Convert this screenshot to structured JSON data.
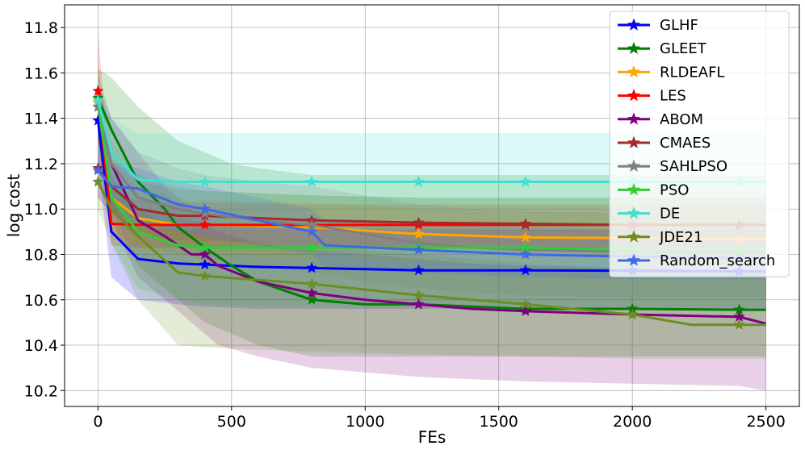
{
  "chart_data": {
    "type": "line",
    "xlabel": "FEs",
    "ylabel": "log cost",
    "xlim": [
      -125,
      2625
    ],
    "ylim": [
      10.13,
      11.9
    ],
    "xticks": [
      0,
      500,
      1000,
      1500,
      2000,
      2500
    ],
    "yticks": [
      10.2,
      10.4,
      10.6,
      10.8,
      11.0,
      11.2,
      11.4,
      11.6,
      11.8
    ],
    "xtick_labels": [
      "0",
      "500",
      "1000",
      "1500",
      "2000",
      "2500"
    ],
    "ytick_labels": [
      "10.2",
      "10.4",
      "10.6",
      "10.8",
      "11.0",
      "11.2",
      "11.4",
      "11.6",
      "11.8"
    ],
    "grid": true,
    "legend_position": "top-right",
    "series": [
      {
        "name": "GLHF",
        "color": "#0000ff",
        "x": [
          0,
          50,
          150,
          300,
          400,
          600,
          800,
          1000,
          1200,
          1600,
          2000,
          2400,
          2500
        ],
        "y": [
          11.39,
          10.9,
          10.78,
          10.76,
          10.755,
          10.745,
          10.74,
          10.735,
          10.73,
          10.73,
          10.728,
          10.725,
          10.725
        ],
        "upper": [
          11.5,
          11.15,
          11.0,
          10.96,
          10.94,
          10.93,
          10.92,
          10.91,
          10.91,
          10.91,
          10.91,
          10.91,
          10.91
        ],
        "lower": [
          11.2,
          10.7,
          10.6,
          10.58,
          10.57,
          10.56,
          10.56,
          10.56,
          10.56,
          10.56,
          10.56,
          10.56,
          10.56
        ]
      },
      {
        "name": "GLEET",
        "color": "#008000",
        "x": [
          0,
          50,
          150,
          250,
          300,
          400,
          500,
          600,
          800,
          1000,
          1200,
          1600,
          2000,
          2400,
          2500
        ],
        "y": [
          11.49,
          11.35,
          11.12,
          11.0,
          10.92,
          10.83,
          10.75,
          10.68,
          10.6,
          10.58,
          10.58,
          10.56,
          10.56,
          10.556,
          10.556
        ],
        "upper": [
          11.62,
          11.58,
          11.45,
          11.35,
          11.3,
          11.25,
          11.2,
          11.18,
          11.15,
          11.15,
          11.15,
          11.15,
          11.15,
          11.15,
          11.15
        ],
        "lower": [
          11.3,
          11.0,
          10.75,
          10.65,
          10.6,
          10.5,
          10.45,
          10.4,
          10.35,
          10.35,
          10.35,
          10.35,
          10.35,
          10.35,
          10.35
        ]
      },
      {
        "name": "RLDEAFL",
        "color": "#ffa500",
        "x": [
          0,
          50,
          150,
          300,
          400,
          800,
          1200,
          1600,
          2000,
          2400,
          2500
        ],
        "y": [
          11.47,
          11.05,
          10.96,
          10.93,
          10.93,
          10.92,
          10.89,
          10.875,
          10.872,
          10.868,
          10.868
        ],
        "upper": [
          11.55,
          11.2,
          11.1,
          11.05,
          11.04,
          11.03,
          11.0,
          10.99,
          10.99,
          10.99,
          10.99
        ],
        "lower": [
          11.3,
          10.9,
          10.82,
          10.8,
          10.8,
          10.79,
          10.77,
          10.76,
          10.76,
          10.76,
          10.76
        ]
      },
      {
        "name": "LES",
        "color": "#ff0000",
        "x": [
          0,
          50,
          150,
          300,
          400,
          800,
          1200,
          1600,
          2000,
          2400,
          2500
        ],
        "y": [
          11.52,
          10.935,
          10.93,
          10.93,
          10.93,
          10.93,
          10.93,
          10.93,
          10.93,
          10.93,
          10.93
        ],
        "upper": [
          11.78,
          11.05,
          11.04,
          11.03,
          11.03,
          11.02,
          11.02,
          11.02,
          11.02,
          11.02,
          11.02
        ],
        "lower": [
          11.3,
          10.84,
          10.83,
          10.83,
          10.83,
          10.83,
          10.83,
          10.83,
          10.83,
          10.83,
          10.83
        ]
      },
      {
        "name": "ABOM",
        "color": "#800080",
        "x": [
          0,
          50,
          150,
          250,
          350,
          400,
          450,
          600,
          800,
          1000,
          1200,
          1400,
          1600,
          2000,
          2400,
          2500
        ],
        "y": [
          11.45,
          11.2,
          10.95,
          10.88,
          10.8,
          10.8,
          10.75,
          10.68,
          10.63,
          10.6,
          10.58,
          10.56,
          10.55,
          10.535,
          10.525,
          10.495
        ],
        "upper": [
          11.55,
          11.4,
          11.25,
          11.1,
          11.0,
          10.95,
          10.9,
          10.85,
          10.82,
          10.8,
          10.78,
          10.76,
          10.75,
          10.74,
          10.73,
          10.72
        ],
        "lower": [
          11.3,
          10.95,
          10.7,
          10.6,
          10.5,
          10.45,
          10.4,
          10.35,
          10.3,
          10.28,
          10.26,
          10.25,
          10.24,
          10.23,
          10.22,
          10.2
        ]
      },
      {
        "name": "CMAES",
        "color": "#a52a2a",
        "x": [
          0,
          50,
          150,
          250,
          300,
          400,
          600,
          800,
          1200,
          1600,
          2000,
          2400,
          2500
        ],
        "y": [
          11.18,
          11.1,
          11.0,
          10.98,
          10.97,
          10.97,
          10.96,
          10.95,
          10.94,
          10.935,
          10.93,
          10.93,
          10.93
        ],
        "upper": [
          11.3,
          11.22,
          11.12,
          11.1,
          11.09,
          11.08,
          11.07,
          11.06,
          11.05,
          11.05,
          11.05,
          11.05,
          11.05
        ],
        "lower": [
          11.05,
          10.98,
          10.9,
          10.87,
          10.86,
          10.86,
          10.85,
          10.84,
          10.83,
          10.83,
          10.83,
          10.83,
          10.83
        ]
      },
      {
        "name": "SAHLPSO",
        "color": "#808080",
        "x": [
          0,
          50,
          150,
          300,
          400,
          600,
          800,
          1000,
          1200,
          1400,
          1600,
          2000,
          2400,
          2500
        ],
        "y": [
          11.45,
          11.2,
          11.05,
          11.0,
          10.98,
          10.95,
          10.93,
          10.89,
          10.85,
          10.83,
          10.82,
          10.81,
          10.805,
          10.805
        ],
        "upper": [
          11.6,
          11.4,
          11.25,
          11.18,
          11.15,
          11.12,
          11.1,
          11.06,
          11.02,
          11.0,
          10.99,
          10.98,
          10.98,
          10.98
        ],
        "lower": [
          11.25,
          11.0,
          10.85,
          10.8,
          10.78,
          10.75,
          10.72,
          10.68,
          10.65,
          10.63,
          10.62,
          10.61,
          10.61,
          10.61
        ]
      },
      {
        "name": "PSO",
        "color": "#32cd32",
        "x": [
          0,
          50,
          150,
          300,
          400,
          800,
          1200,
          1600,
          2000,
          2400,
          2500
        ],
        "y": [
          11.48,
          11.05,
          10.9,
          10.84,
          10.83,
          10.83,
          10.83,
          10.83,
          10.82,
          10.82,
          10.82
        ],
        "upper": [
          11.6,
          11.3,
          11.15,
          11.1,
          11.08,
          11.06,
          11.05,
          11.05,
          11.05,
          11.05,
          11.05
        ],
        "lower": [
          11.3,
          10.85,
          10.65,
          10.6,
          10.58,
          10.57,
          10.57,
          10.57,
          10.57,
          10.57,
          10.57
        ]
      },
      {
        "name": "DE",
        "color": "#40e0d0",
        "x": [
          0,
          50,
          150,
          300,
          400,
          800,
          1200,
          1600,
          2000,
          2400,
          2500
        ],
        "y": [
          11.48,
          11.25,
          11.13,
          11.12,
          11.12,
          11.12,
          11.12,
          11.12,
          11.12,
          11.12,
          11.12
        ],
        "upper": [
          11.55,
          11.4,
          11.33,
          11.335,
          11.335,
          11.335,
          11.335,
          11.335,
          11.335,
          11.335,
          11.335
        ],
        "lower": [
          11.38,
          11.05,
          10.92,
          10.91,
          10.91,
          10.91,
          10.91,
          10.91,
          10.91,
          10.91,
          10.91
        ]
      },
      {
        "name": "JDE21",
        "color": "#6b8e23",
        "x": [
          0,
          50,
          150,
          300,
          400,
          800,
          1200,
          1600,
          2000,
          2220,
          2400,
          2500
        ],
        "y": [
          11.12,
          11.0,
          10.88,
          10.72,
          10.705,
          10.67,
          10.62,
          10.58,
          10.535,
          10.49,
          10.49,
          10.49
        ],
        "upper": [
          11.25,
          11.1,
          11.0,
          10.9,
          10.88,
          10.84,
          10.8,
          10.76,
          10.74,
          10.72,
          10.72,
          10.72
        ],
        "lower": [
          11.0,
          10.85,
          10.6,
          10.4,
          10.39,
          10.37,
          10.36,
          10.35,
          10.34,
          10.34,
          10.34,
          10.34
        ]
      },
      {
        "name": "Random_search",
        "color": "#4169e1",
        "x": [
          0,
          50,
          150,
          300,
          400,
          600,
          800,
          850,
          1200,
          1600,
          2000,
          2400,
          2500
        ],
        "y": [
          11.17,
          11.1,
          11.09,
          11.02,
          11.0,
          10.95,
          10.9,
          10.84,
          10.82,
          10.8,
          10.79,
          10.785,
          10.785
        ],
        "upper": [
          11.25,
          11.2,
          11.18,
          11.12,
          11.1,
          11.05,
          11.0,
          10.95,
          10.93,
          10.92,
          10.91,
          10.91,
          10.91
        ],
        "lower": [
          11.05,
          10.98,
          10.96,
          10.9,
          10.88,
          10.84,
          10.8,
          10.74,
          10.72,
          10.7,
          10.69,
          10.69,
          10.69
        ]
      }
    ]
  }
}
